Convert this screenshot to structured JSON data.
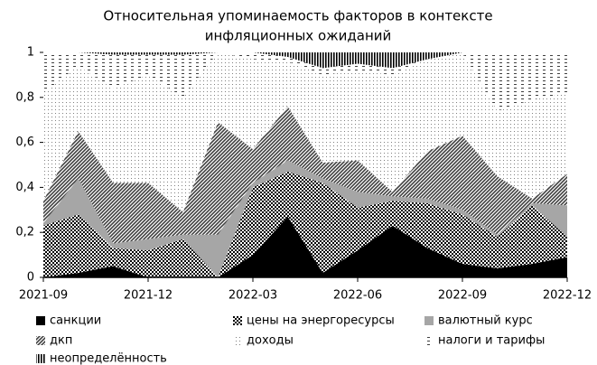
{
  "chart_data": {
    "type": "stacked_area",
    "title": [
      "Относительная упоминаемость факторов в контексте",
      "инфляционных ожиданий"
    ],
    "categories": [
      "2021-09",
      null,
      null,
      "2021-12",
      null,
      null,
      "2022-03",
      null,
      null,
      "2022-06",
      null,
      null,
      "2022-09",
      null,
      null,
      "2022-12"
    ],
    "ylim": [
      0,
      1
    ],
    "yticks": [
      0,
      {
        "value": 0.2,
        "label": "0,2"
      },
      {
        "value": 0.4,
        "label": "0,4"
      },
      {
        "value": 0.6,
        "label": "0,6"
      },
      {
        "value": 0.8,
        "label": "0,8"
      },
      1
    ],
    "grid": false,
    "legend": "bottom",
    "series": [
      {
        "name": "санкции",
        "color": "#000000",
        "pattern": "solid",
        "values": [
          0,
          0.02,
          0.05,
          0,
          0,
          0,
          0.1,
          0.27,
          0.02,
          0.12,
          0.23,
          0.13,
          0.06,
          0.04,
          0.06,
          0.09
        ]
      },
      {
        "name": "цены на энергоресурсы",
        "color": "#000000",
        "pattern": "checker",
        "values": [
          0.23,
          0.26,
          0.08,
          0.12,
          0.17,
          0,
          0.3,
          0.2,
          0.4,
          0.19,
          0.11,
          0.2,
          0.22,
          0.14,
          0.26,
          0.09
        ]
      },
      {
        "name": "валютный курс",
        "color": "#a6a6a6",
        "pattern": "solid",
        "values": [
          0.01,
          0.16,
          0.02,
          0.05,
          0.02,
          0.19,
          0.02,
          0.05,
          0.02,
          0.07,
          0.02,
          0.02,
          0.02,
          0.01,
          0.01,
          0.14
        ]
      },
      {
        "name": "дкп",
        "color": "#404040",
        "pattern": "diagonal",
        "values": [
          0.1,
          0.21,
          0.27,
          0.25,
          0.1,
          0.5,
          0.15,
          0.24,
          0.07,
          0.14,
          0.02,
          0.21,
          0.33,
          0.26,
          0.02,
          0.14
        ]
      },
      {
        "name": "доходы",
        "color": "#808080",
        "pattern": "dots",
        "values": [
          0.48,
          0.29,
          0.42,
          0.48,
          0.51,
          0.31,
          0.4,
          0.2,
          0.39,
          0.4,
          0.52,
          0.41,
          0.37,
          0.29,
          0.44,
          0.36
        ]
      },
      {
        "name": "налоги и тарифы",
        "color": "#404040",
        "pattern": "dashes",
        "values": [
          0.18,
          0.06,
          0.15,
          0.09,
          0.19,
          0,
          0.03,
          0.02,
          0.03,
          0.03,
          0.03,
          0,
          0,
          0.26,
          0.21,
          0.18
        ]
      },
      {
        "name": "неопределённость",
        "color": "#000000",
        "pattern": "vertical",
        "values": [
          0,
          0,
          0.01,
          0.01,
          0.01,
          0,
          0,
          0.02,
          0.07,
          0.05,
          0.07,
          0.03,
          0,
          0,
          0,
          0
        ]
      }
    ]
  }
}
